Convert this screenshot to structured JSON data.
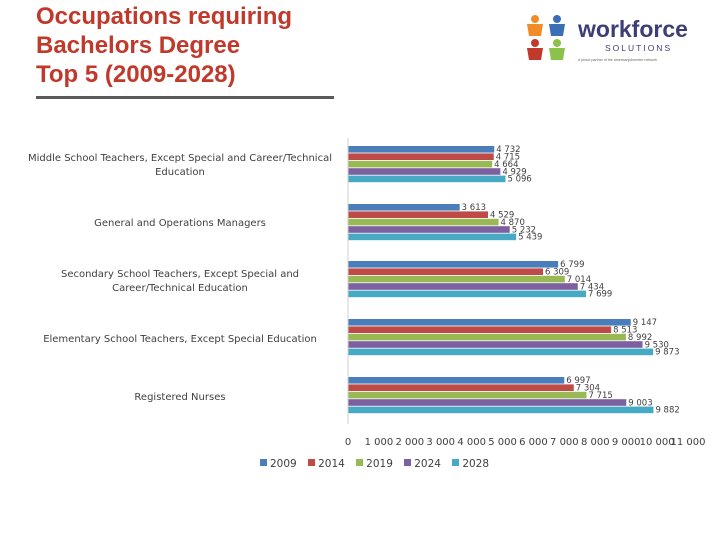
{
  "slide": {
    "title_lines": [
      "Occupations requiring",
      "Bachelors Degree",
      "Top 5 (2009-2028)"
    ]
  },
  "logo": {
    "word": "workforce",
    "sub": "SOLUTIONS",
    "tagline": "A proud partner of the americanjobcenter network",
    "icon": "puzzle-people-icon"
  },
  "colors": {
    "title": "#c0392b",
    "series": [
      "#4a7ebb",
      "#be4b48",
      "#98b954",
      "#7d60a0",
      "#46aac5"
    ]
  },
  "chart_data": {
    "type": "bar",
    "orientation": "horizontal",
    "categories": [
      "Middle School Teachers, Except Special and Career/Technical Education",
      "General and Operations Managers",
      "Secondary School Teachers, Except Special and Career/Technical Education",
      "Elementary School Teachers, Except Special Education",
      "Registered Nurses"
    ],
    "series": [
      {
        "name": "2009",
        "values": [
          4732,
          3613,
          6799,
          9147,
          6997
        ],
        "labels": [
          "4 732",
          "3 613",
          "6 799",
          "9 147",
          "6 997"
        ]
      },
      {
        "name": "2014",
        "values": [
          4715,
          4529,
          6309,
          8513,
          7304
        ],
        "labels": [
          "4 715",
          "4 529",
          "6 309",
          "8 513",
          "7 304"
        ]
      },
      {
        "name": "2019",
        "values": [
          4664,
          4870,
          7014,
          8992,
          7715
        ],
        "labels": [
          "4 664",
          "4 870",
          "7 014",
          "8 992",
          "7 715"
        ]
      },
      {
        "name": "2024",
        "values": [
          4929,
          5232,
          7434,
          9530,
          9003
        ],
        "labels": [
          "4 929",
          "5 232",
          "7 434",
          "9 530",
          "9 003"
        ]
      },
      {
        "name": "2028",
        "values": [
          5096,
          5439,
          7699,
          9873,
          9882
        ],
        "labels": [
          "5 096",
          "5 439",
          "7 699",
          "9 873",
          "9 882"
        ]
      }
    ],
    "xlim": [
      0,
      11000
    ],
    "xticks": [
      0,
      1000,
      2000,
      3000,
      4000,
      5000,
      6000,
      7000,
      8000,
      9000,
      10000,
      11000
    ],
    "xtick_labels": [
      "0",
      "1 000",
      "2 000",
      "3 000",
      "4 000",
      "5 000",
      "6 000",
      "7 000",
      "8 000",
      "9 000",
      "10 000",
      "11 000"
    ],
    "grid": false,
    "legend_position": "bottom"
  }
}
